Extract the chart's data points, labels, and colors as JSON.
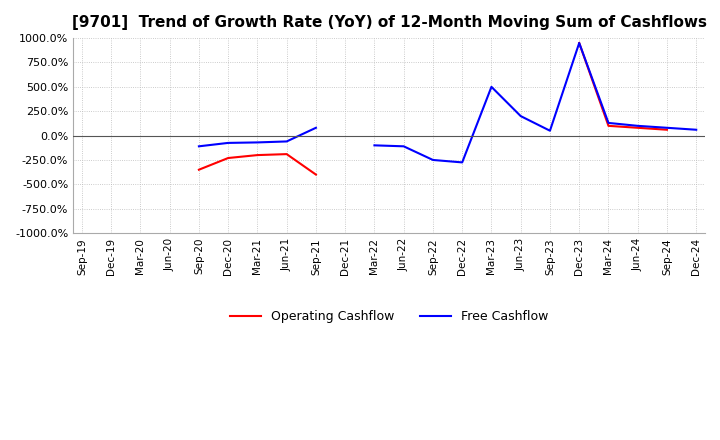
{
  "title": "[9701]  Trend of Growth Rate (YoY) of 12-Month Moving Sum of Cashflows",
  "title_fontsize": 11,
  "ylim": [
    -1000,
    1000
  ],
  "yticks": [
    -1000,
    -750,
    -500,
    -250,
    0,
    250,
    500,
    750,
    1000
  ],
  "ytick_labels": [
    "-1000.0%",
    "-750.0%",
    "-500.0%",
    "-250.0%",
    "0.0%",
    "250.0%",
    "500.0%",
    "750.0%",
    "1000.0%"
  ],
  "background_color": "#ffffff",
  "plot_background": "#ffffff",
  "grid_color": "#bbbbbb",
  "x_labels": [
    "Sep-19",
    "Dec-19",
    "Mar-20",
    "Jun-20",
    "Sep-20",
    "Dec-20",
    "Mar-21",
    "Jun-21",
    "Sep-21",
    "Dec-21",
    "Mar-22",
    "Jun-22",
    "Sep-22",
    "Dec-22",
    "Mar-23",
    "Jun-23",
    "Sep-23",
    "Dec-23",
    "Mar-24",
    "Jun-24",
    "Sep-24",
    "Dec-24"
  ],
  "operating_cashflow": [
    null,
    null,
    null,
    null,
    -350,
    -230,
    -200,
    -190,
    -400,
    null,
    null,
    null,
    null,
    null,
    null,
    null,
    null,
    950,
    100,
    80,
    60,
    null
  ],
  "free_cashflow": [
    null,
    null,
    null,
    null,
    -110,
    -75,
    -70,
    -60,
    80,
    null,
    -100,
    -110,
    -250,
    -275,
    500,
    200,
    50,
    950,
    130,
    100,
    80,
    60
  ],
  "operating_color": "#ff0000",
  "free_color": "#0000ff",
  "legend_labels": [
    "Operating Cashflow",
    "Free Cashflow"
  ]
}
